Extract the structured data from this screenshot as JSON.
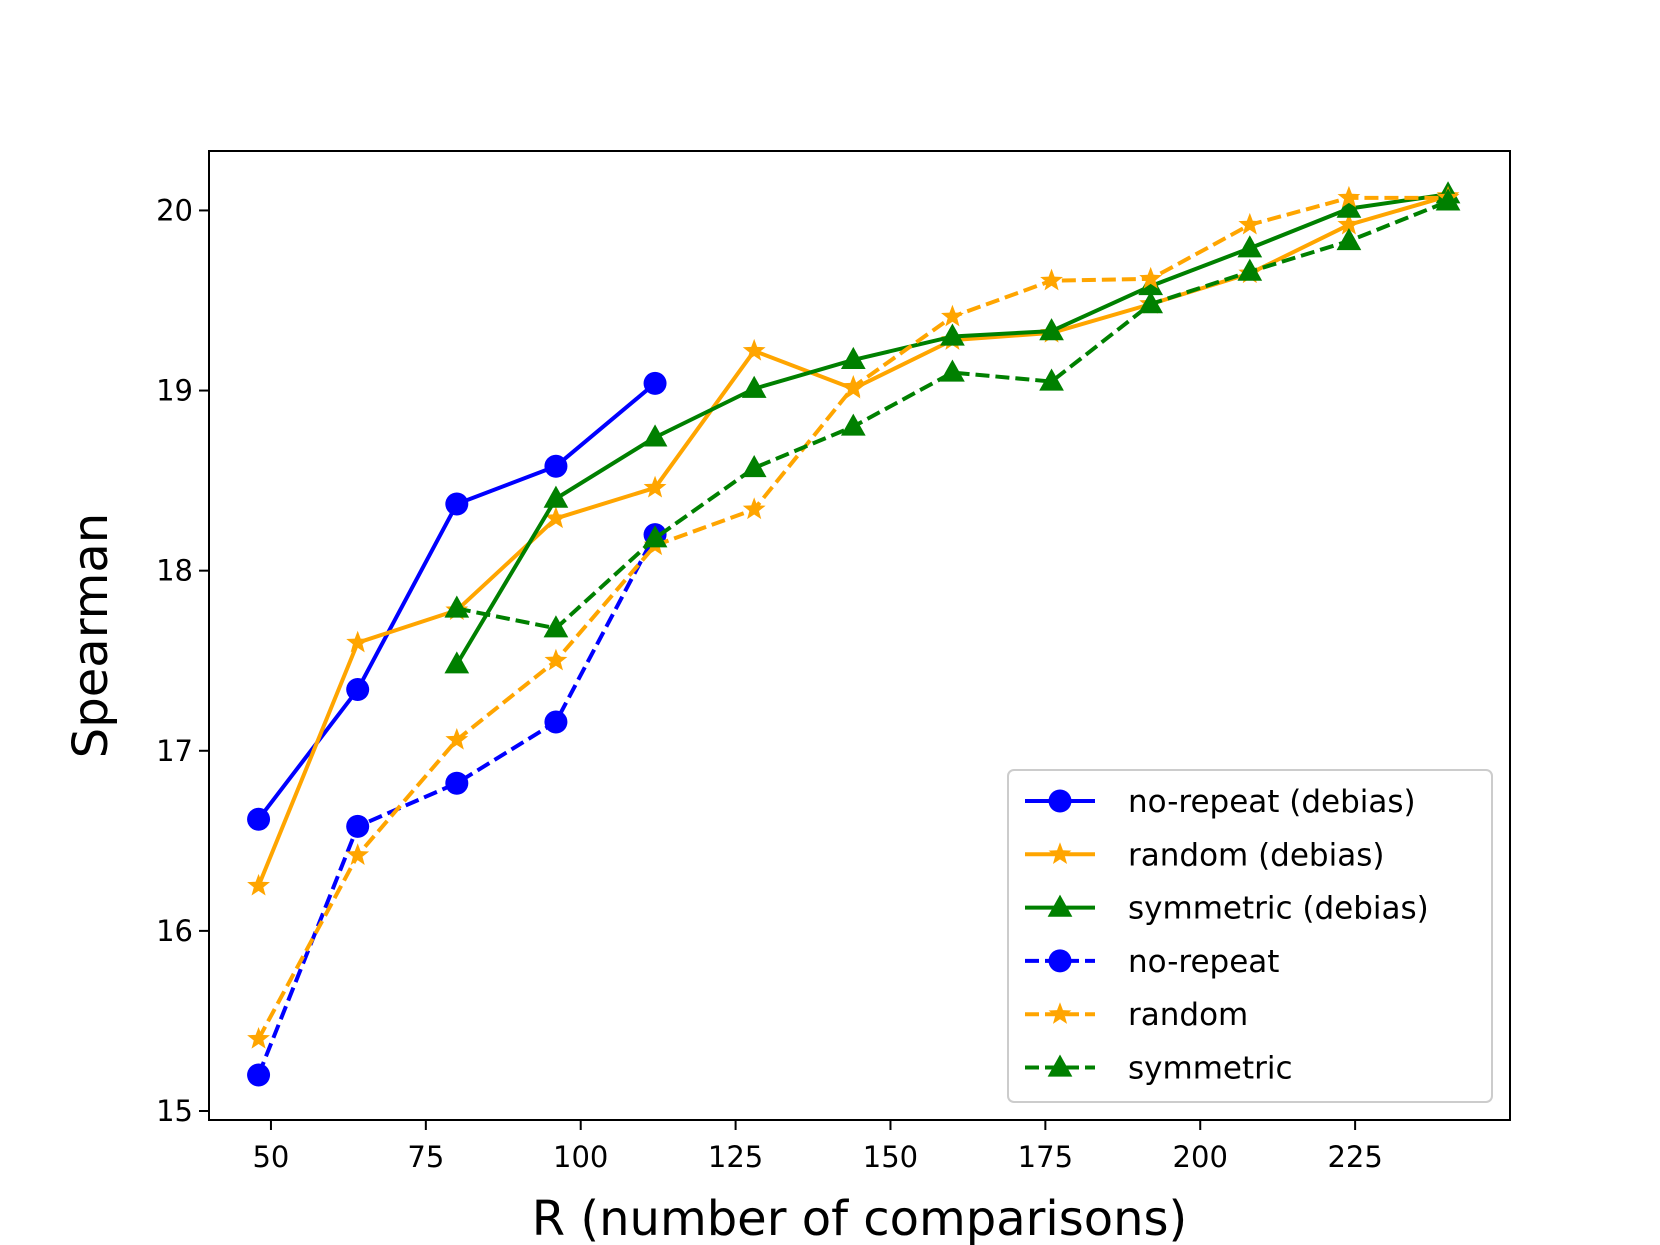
{
  "chart_data": {
    "type": "line",
    "title": "",
    "xlabel": "R (number of comparisons)",
    "ylabel": "Spearman",
    "xlim": [
      40,
      250
    ],
    "ylim": [
      14.95,
      20.33
    ],
    "xticks": [
      50,
      75,
      100,
      125,
      150,
      175,
      200,
      225
    ],
    "yticks": [
      15,
      16,
      17,
      18,
      19,
      20
    ],
    "grid": false,
    "legend_position": "lower-right",
    "series": [
      {
        "name": "no-repeat (debias)",
        "color": "#0000ff",
        "linestyle": "solid",
        "marker": "circle",
        "x": [
          48,
          64,
          80,
          96,
          112
        ],
        "y": [
          16.62,
          17.34,
          18.37,
          18.58,
          19.04
        ]
      },
      {
        "name": "random (debias)",
        "color": "#ffa500",
        "linestyle": "solid",
        "marker": "star",
        "x": [
          48,
          64,
          80,
          96,
          112,
          128,
          144,
          160,
          176,
          192,
          208,
          224,
          240
        ],
        "y": [
          16.25,
          17.6,
          17.78,
          18.29,
          18.46,
          19.22,
          19.01,
          19.28,
          19.32,
          19.48,
          19.65,
          19.92,
          20.08
        ]
      },
      {
        "name": "symmetric (debias)",
        "color": "#008000",
        "linestyle": "solid",
        "marker": "triangle",
        "x": [
          80,
          96,
          112,
          128,
          144,
          160,
          176,
          192,
          208,
          224,
          240
        ],
        "y": [
          17.48,
          18.4,
          18.74,
          19.01,
          19.17,
          19.3,
          19.33,
          19.58,
          19.79,
          20.01,
          20.09
        ]
      },
      {
        "name": "no-repeat",
        "color": "#0000ff",
        "linestyle": "dashed",
        "marker": "circle",
        "x": [
          48,
          64,
          80,
          96,
          112
        ],
        "y": [
          15.2,
          16.58,
          16.82,
          17.16,
          18.2
        ]
      },
      {
        "name": "random",
        "color": "#ffa500",
        "linestyle": "dashed",
        "marker": "star",
        "x": [
          48,
          64,
          80,
          96,
          112,
          128,
          144,
          160,
          176,
          192,
          208,
          224,
          240
        ],
        "y": [
          15.4,
          16.42,
          17.06,
          17.5,
          18.14,
          18.34,
          19.02,
          19.41,
          19.61,
          19.62,
          19.92,
          20.07,
          20.07
        ]
      },
      {
        "name": "symmetric",
        "color": "#008000",
        "linestyle": "dashed",
        "marker": "triangle",
        "x": [
          80,
          96,
          112,
          128,
          144,
          160,
          176,
          192,
          208,
          224,
          240
        ],
        "y": [
          17.79,
          17.68,
          18.18,
          18.57,
          18.8,
          19.1,
          19.05,
          19.48,
          19.66,
          19.83,
          20.05
        ]
      }
    ]
  }
}
